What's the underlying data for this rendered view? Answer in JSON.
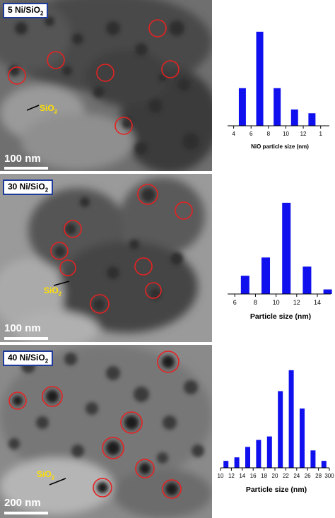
{
  "panels": [
    {
      "label_main": "5 Ni/SiO",
      "label_sub": "2",
      "scale": "100 nm",
      "sio2_main": "SiO",
      "sio2_sub": "2"
    },
    {
      "label_main": "30 Ni/SiO",
      "label_sub": "2",
      "scale": "100 nm",
      "sio2_main": "SiO",
      "sio2_sub": "2"
    },
    {
      "label_main": "40 Ni/SiO",
      "label_sub": "2",
      "scale": "200 nm",
      "sio2_main": "SiO",
      "sio2_sub": "2"
    }
  ],
  "colors": {
    "bar": "#1010ee",
    "circle": "#e52222",
    "label_border": "#1e3a9a",
    "sio2_text": "#ffe000"
  },
  "chart_data": [
    {
      "type": "bar",
      "xlabel": "NiO particle size (nm)",
      "x_ticks": [
        "4",
        "6",
        "8",
        "10",
        "12",
        "1"
      ],
      "x": [
        5,
        7,
        9,
        11,
        13
      ],
      "values": [
        3,
        7.5,
        3,
        1.3,
        1
      ],
      "xlim": [
        3.3,
        15
      ],
      "ylim": [
        0,
        8
      ]
    },
    {
      "type": "bar",
      "xlabel": "Particle size (nm)",
      "x_ticks": [
        "6",
        "8",
        "10",
        "12",
        "14"
      ],
      "x": [
        7,
        9,
        11,
        13,
        15
      ],
      "values": [
        2,
        4,
        10,
        3,
        0.5
      ],
      "xlim": [
        5.3,
        15.3
      ],
      "ylim": [
        0,
        11
      ]
    },
    {
      "type": "bar",
      "xlabel": "Particle size (nm)",
      "x_ticks": [
        "10",
        "12",
        "14",
        "16",
        "18",
        "20",
        "22",
        "24",
        "26",
        "28",
        "300"
      ],
      "x": [
        11,
        13,
        15,
        17,
        19,
        21,
        23,
        25,
        27,
        29
      ],
      "values": [
        2,
        3,
        6,
        8,
        9,
        22,
        28,
        17,
        5,
        2
      ],
      "xlim": [
        10,
        30
      ],
      "ylim": [
        0,
        30
      ]
    }
  ]
}
